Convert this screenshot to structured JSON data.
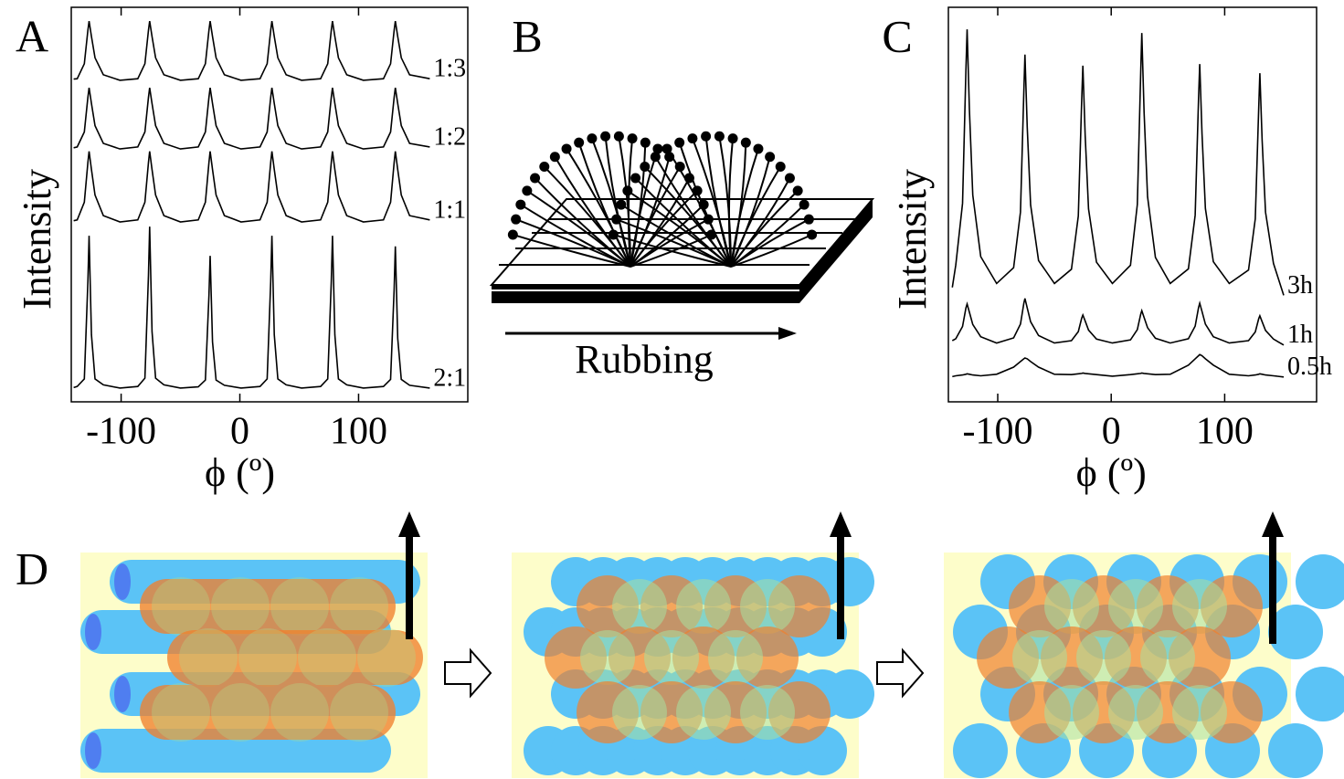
{
  "panel_labels": {
    "a": "A",
    "b": "B",
    "c": "C",
    "d": "D"
  },
  "diagram": {
    "label": "Rubbing"
  },
  "chart_data": [
    {
      "type": "line",
      "y_label": "Intensity",
      "x_label": "ϕ (º)",
      "xlim": [
        -142,
        192
      ],
      "ylim": [
        0,
        100
      ],
      "xticks": [
        -100,
        0,
        100
      ],
      "x": [
        -140,
        -137,
        -131,
        -128,
        -127,
        -125,
        -122,
        -115,
        -101,
        -86,
        -80,
        -77,
        -76,
        -74,
        -71,
        -64,
        -50,
        -35,
        -29,
        -26,
        -25,
        -23,
        -20,
        -13,
        1,
        17,
        23,
        26,
        27,
        29,
        32,
        39,
        52,
        68,
        74,
        77,
        78,
        80,
        83,
        90,
        104,
        121,
        127,
        130,
        131,
        133,
        136,
        143,
        160
      ],
      "series": [
        {
          "name": "1:3",
          "color": "#000000",
          "values": [
            81.8,
            81.9,
            85.7,
            94.2,
            96.5,
            92.6,
            87.2,
            82.9,
            81.5,
            81.9,
            85.7,
            94.2,
            96.5,
            92.6,
            87.2,
            82.9,
            81.5,
            81.9,
            85.7,
            94.2,
            96.5,
            92.6,
            87.2,
            82.9,
            81.5,
            81.9,
            85.7,
            94.2,
            96.5,
            92.6,
            87.2,
            82.9,
            81.5,
            81.9,
            85.7,
            94.2,
            96.5,
            92.6,
            87.2,
            82.9,
            81.5,
            81.9,
            85.7,
            94.2,
            96.5,
            92.6,
            87.2,
            82.9,
            81.9
          ]
        },
        {
          "name": "1:2",
          "color": "#000000",
          "values": [
            64.4,
            64.6,
            68.4,
            77.2,
            79.6,
            75.6,
            70.0,
            65.5,
            64.1,
            64.6,
            68.4,
            77.2,
            79.6,
            75.6,
            70.0,
            65.5,
            64.1,
            64.6,
            68.4,
            77.2,
            79.6,
            75.6,
            70.0,
            65.5,
            64.1,
            64.6,
            68.4,
            77.2,
            79.6,
            75.6,
            70.0,
            65.5,
            64.1,
            64.6,
            68.4,
            77.2,
            79.6,
            75.6,
            70.0,
            65.5,
            64.1,
            64.6,
            68.4,
            77.2,
            79.6,
            75.6,
            70.0,
            65.5,
            64.6
          ]
        },
        {
          "name": "1:1",
          "color": "#000000",
          "values": [
            45.9,
            46.1,
            50.6,
            60.7,
            63.5,
            58.9,
            52.4,
            47.2,
            45.6,
            46.1,
            50.6,
            60.7,
            63.5,
            58.9,
            52.4,
            47.2,
            45.6,
            46.1,
            50.6,
            60.7,
            63.5,
            58.9,
            52.4,
            47.2,
            45.6,
            46.1,
            50.6,
            60.7,
            63.5,
            58.9,
            52.4,
            47.2,
            45.6,
            46.1,
            50.6,
            60.7,
            63.5,
            58.9,
            52.4,
            47.2,
            45.6,
            46.1,
            50.6,
            60.7,
            63.5,
            58.9,
            52.4,
            47.2,
            46.1
          ]
        },
        {
          "name": "2:1",
          "color": "#000000",
          "values": [
            3.6,
            3.9,
            5.8,
            30.5,
            42.1,
            17.0,
            5.8,
            4.3,
            3.5,
            3.9,
            6.0,
            32.1,
            44.4,
            17.8,
            6.0,
            4.3,
            3.5,
            3.8,
            5.5,
            27.0,
            37.0,
            15.2,
            5.5,
            4.2,
            3.5,
            3.9,
            5.8,
            30.5,
            42.1,
            17.0,
            5.8,
            4.3,
            3.5,
            3.9,
            5.8,
            30.5,
            42.1,
            17.0,
            5.8,
            4.3,
            3.5,
            3.9,
            5.7,
            28.6,
            39.4,
            16.1,
            5.7,
            4.2,
            3.5
          ]
        }
      ]
    },
    {
      "type": "line",
      "y_label": "Intensity",
      "x_label": "ϕ (º)",
      "xlim": [
        -143.5,
        181
      ],
      "ylim": [
        0,
        100
      ],
      "xticks": [
        -100,
        0,
        100
      ],
      "x": [
        -140,
        -137,
        -131,
        -128,
        -127,
        -125,
        -122,
        -115,
        -101,
        -86,
        -80,
        -77,
        -76,
        -74,
        -71,
        -64,
        -50,
        -35,
        -29,
        -26,
        -25,
        -23,
        -20,
        -13,
        1,
        17,
        23,
        26,
        27,
        29,
        32,
        39,
        52,
        68,
        74,
        77,
        78,
        80,
        83,
        90,
        104,
        121,
        127,
        130,
        131,
        133,
        136,
        143,
        152
      ],
      "series": [
        {
          "name": "3h",
          "color": "#000000",
          "values": [
            29.0,
            34.7,
            50.3,
            84.2,
            94.4,
            74.1,
            52.4,
            36.8,
            30.0,
            34.0,
            48.1,
            78.8,
            88.0,
            69.6,
            49.9,
            35.8,
            30.0,
            33.6,
            47.1,
            76.4,
            85.2,
            67.6,
            48.9,
            35.4,
            30.0,
            34.6,
            50.0,
            83.5,
            93.5,
            73.4,
            52.0,
            36.6,
            30.0,
            33.7,
            47.3,
            76.8,
            85.6,
            67.9,
            49.0,
            35.5,
            30.0,
            33.4,
            46.4,
            74.8,
            83.3,
            66.3,
            48.1,
            35.1,
            27.0
          ]
        },
        {
          "name": "1h",
          "color": "#000000",
          "values": [
            15.5,
            16.0,
            19.1,
            23.8,
            24.8,
            22.7,
            19.6,
            16.5,
            14.9,
            16.2,
            19.7,
            25.0,
            26.2,
            23.8,
            20.3,
            16.8,
            14.9,
            15.5,
            17.8,
            21.2,
            22.0,
            20.5,
            18.2,
            15.9,
            14.9,
            15.7,
            18.3,
            22.2,
            23.1,
            21.4,
            18.8,
            16.1,
            14.9,
            16.0,
            19.2,
            23.9,
            25.0,
            22.9,
            19.7,
            16.5,
            14.9,
            15.5,
            17.7,
            21.1,
            21.8,
            20.3,
            18.1,
            15.9,
            14.4
          ]
        },
        {
          "name": "0.5h",
          "color": "#000000",
          "values": [
            6.4,
            6.6,
            6.8,
            7.0,
            7.1,
            7.0,
            6.8,
            6.6,
            7.0,
            8.8,
            10.2,
            10.9,
            11.1,
            10.9,
            10.2,
            8.8,
            7.0,
            6.9,
            7.1,
            7.2,
            7.3,
            7.2,
            7.1,
            6.9,
            6.5,
            6.9,
            7.1,
            7.2,
            7.3,
            7.2,
            7.1,
            6.9,
            7.0,
            9.3,
            10.9,
            11.7,
            12.0,
            11.7,
            10.9,
            9.3,
            7.0,
            6.6,
            6.8,
            7.0,
            7.1,
            7.0,
            6.8,
            6.6,
            6.3
          ]
        }
      ]
    }
  ]
}
